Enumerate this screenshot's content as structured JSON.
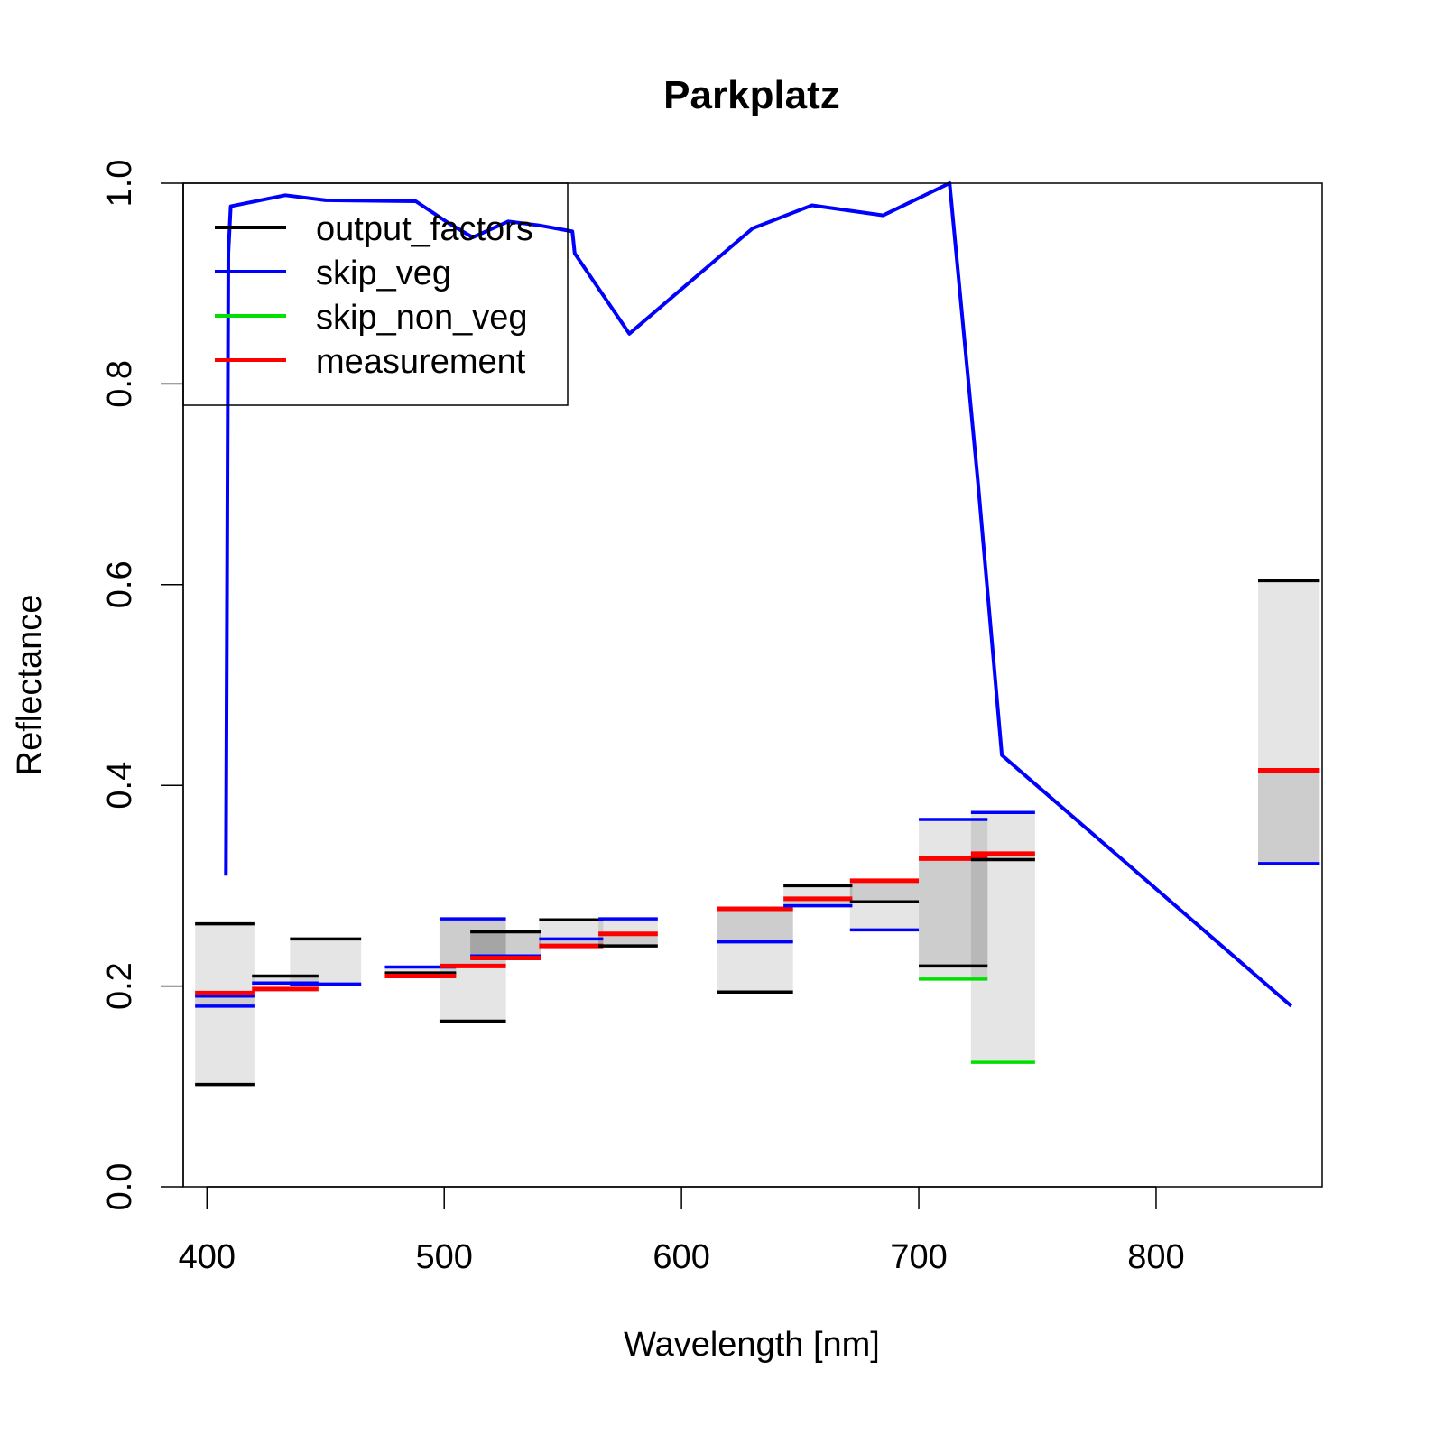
{
  "chart_data": {
    "type": "line",
    "title": "Parkplatz",
    "xlabel": "Wavelength [nm]",
    "ylabel": "Reflectance",
    "xlim": [
      390,
      870
    ],
    "ylim": [
      0,
      1
    ],
    "x_ticks": [
      400,
      500,
      600,
      700,
      800
    ],
    "y_ticks": [
      0.0,
      0.2,
      0.4,
      0.6,
      0.8,
      1.0
    ],
    "x_tick_labels": [
      "400",
      "500",
      "600",
      "700",
      "800"
    ],
    "y_tick_labels": [
      "0.0",
      "0.2",
      "0.4",
      "0.6",
      "0.8",
      "1.0"
    ],
    "grid": false,
    "legend": {
      "position": "top-left",
      "entries": [
        {
          "label": "output_factors",
          "color": "#000000"
        },
        {
          "label": "skip_veg",
          "color": "#0000ff"
        },
        {
          "label": "skip_non_veg",
          "color": "#00e000"
        },
        {
          "label": "measurement",
          "color": "#ff0000"
        }
      ]
    },
    "line_series": {
      "name": "skip_veg",
      "color": "#0000ff",
      "points": [
        [
          408,
          0.31
        ],
        [
          408.5,
          0.6
        ],
        [
          409,
          0.93
        ],
        [
          410,
          0.977
        ],
        [
          433,
          0.988
        ],
        [
          450,
          0.983
        ],
        [
          488,
          0.982
        ],
        [
          502,
          0.96
        ],
        [
          512,
          0.946
        ],
        [
          527,
          0.962
        ],
        [
          540,
          0.958
        ],
        [
          554,
          0.952
        ],
        [
          555,
          0.93
        ],
        [
          578,
          0.85
        ],
        [
          630,
          0.955
        ],
        [
          655,
          0.978
        ],
        [
          685,
          0.968
        ],
        [
          713,
          1.0
        ],
        [
          725,
          0.7
        ],
        [
          735,
          0.43
        ],
        [
          857,
          0.18
        ]
      ]
    },
    "bands": [
      {
        "x0": 395,
        "x1": 420,
        "outer": [
          0.102,
          0.262
        ],
        "inner": [
          0.18,
          0.193
        ],
        "output_factors": [
          0.102,
          0.262
        ],
        "skip_veg": [
          0.18,
          0.19
        ],
        "measurement": [
          0.193
        ]
      },
      {
        "x0": 419,
        "x1": 447,
        "outer": [
          0.2,
          0.21
        ],
        "inner": [
          0.2,
          0.2
        ],
        "output_factors": [
          0.21
        ],
        "skip_veg": [
          0.203
        ],
        "measurement": [
          0.197
        ]
      },
      {
        "x0": 435,
        "x1": 465,
        "outer": [
          0.2,
          0.247
        ],
        "inner": [
          0.2,
          0.203
        ],
        "output_factors": [
          0.247
        ],
        "skip_veg": [
          0.202
        ],
        "measurement": []
      },
      {
        "x0": 475,
        "x1": 505,
        "outer": [
          0.21,
          0.219
        ],
        "inner": [
          0.21,
          0.213
        ],
        "output_factors": [
          0.213
        ],
        "skip_veg": [
          0.219
        ],
        "measurement": [
          0.21
        ]
      },
      {
        "x0": 498,
        "x1": 526,
        "outer": [
          0.165,
          0.267
        ],
        "inner": [
          0.22,
          0.267
        ],
        "output_factors": [
          0.165
        ],
        "skip_veg": [
          0.267
        ],
        "measurement": [
          0.22
        ]
      },
      {
        "x0": 511,
        "x1": 541,
        "outer": [
          0.228,
          0.254
        ],
        "inner": [
          0.228,
          0.254
        ],
        "output_factors": [
          0.254
        ],
        "skip_veg": [
          0.23
        ],
        "measurement": [
          0.228
        ]
      },
      {
        "x0": 540,
        "x1": 567,
        "outer": [
          0.24,
          0.266
        ],
        "inner": [
          0.24,
          0.247
        ],
        "output_factors": [
          0.266
        ],
        "skip_veg": [
          0.247
        ],
        "measurement": [
          0.24
        ]
      },
      {
        "x0": 565,
        "x1": 590,
        "outer": [
          0.24,
          0.267
        ],
        "inner": [
          0.24,
          0.252
        ],
        "output_factors": [
          0.24
        ],
        "skip_veg": [
          0.267
        ],
        "measurement": [
          0.252
        ]
      },
      {
        "x0": 615,
        "x1": 647,
        "outer": [
          0.194,
          0.277
        ],
        "inner": [
          0.244,
          0.277
        ],
        "output_factors": [
          0.194
        ],
        "skip_veg": [
          0.244
        ],
        "measurement": [
          0.277
        ]
      },
      {
        "x0": 643,
        "x1": 672,
        "outer": [
          0.28,
          0.3
        ],
        "inner": [
          0.28,
          0.287
        ],
        "output_factors": [
          0.3
        ],
        "skip_veg": [
          0.28
        ],
        "measurement": [
          0.287
        ]
      },
      {
        "x0": 671,
        "x1": 700,
        "outer": [
          0.256,
          0.305
        ],
        "inner": [
          0.284,
          0.305
        ],
        "output_factors": [
          0.284
        ],
        "skip_veg": [
          0.256
        ],
        "measurement": [
          0.305
        ]
      },
      {
        "x0": 700,
        "x1": 729,
        "outer": [
          0.207,
          0.366
        ],
        "inner": [
          0.22,
          0.327
        ],
        "output_factors": [
          0.22
        ],
        "skip_veg": [
          0.366
        ],
        "skip_non_veg": [
          0.207
        ],
        "measurement": [
          0.327
        ]
      },
      {
        "x0": 722,
        "x1": 749,
        "outer": [
          0.124,
          0.373
        ],
        "inner": [
          0.326,
          0.332
        ],
        "output_factors": [
          0.326
        ],
        "skip_veg": [
          0.373
        ],
        "skip_non_veg": [
          0.124
        ],
        "measurement": [
          0.332
        ]
      },
      {
        "x0": 843,
        "x1": 869,
        "outer": [
          0.322,
          0.604
        ],
        "inner": [
          0.322,
          0.415
        ],
        "output_factors": [
          0.604
        ],
        "skip_veg": [
          0.322
        ],
        "measurement": [
          0.415
        ]
      }
    ]
  }
}
